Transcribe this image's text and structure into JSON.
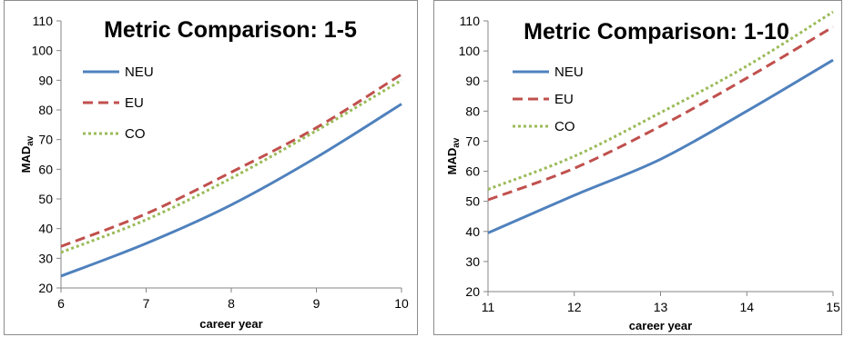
{
  "chart_data": [
    {
      "type": "line",
      "title": "Metric Comparison: 1-5",
      "xlabel": "career year",
      "ylabel": "MAD",
      "ylabel_sub": "av",
      "xlim": [
        6,
        10
      ],
      "ylim": [
        20,
        110
      ],
      "xticks": [
        "6",
        "7",
        "8",
        "9",
        "10"
      ],
      "yticks": [
        "20",
        "30",
        "40",
        "50",
        "60",
        "70",
        "80",
        "90",
        "100",
        "110"
      ],
      "grid": false,
      "legend_position": "upper-left",
      "x": [
        6,
        7,
        8,
        9,
        10
      ],
      "series": [
        {
          "name": "NEU",
          "color": "#4f81bd",
          "style": "solid",
          "values": [
            24,
            35,
            48,
            64,
            82
          ]
        },
        {
          "name": "EU",
          "color": "#c0504d",
          "style": "dashed",
          "values": [
            34,
            45,
            59,
            74,
            92
          ]
        },
        {
          "name": "CO",
          "color": "#9bbb59",
          "style": "dotted",
          "values": [
            32,
            43,
            57,
            73,
            90
          ]
        }
      ]
    },
    {
      "type": "line",
      "title": "Metric Comparison: 1-10",
      "xlabel": "career year",
      "ylabel": "MAD",
      "ylabel_sub": "av",
      "xlim": [
        11,
        15
      ],
      "ylim": [
        20,
        110
      ],
      "xticks": [
        "11",
        "12",
        "13",
        "14",
        "15"
      ],
      "yticks": [
        "20",
        "30",
        "40",
        "50",
        "60",
        "70",
        "80",
        "90",
        "100",
        "110"
      ],
      "grid": false,
      "legend_position": "upper-left",
      "x": [
        11,
        12,
        13,
        14,
        15
      ],
      "series": [
        {
          "name": "NEU",
          "color": "#4f81bd",
          "style": "solid",
          "values": [
            39.5,
            52,
            64,
            80,
            97
          ]
        },
        {
          "name": "EU",
          "color": "#c0504d",
          "style": "dashed",
          "values": [
            50.5,
            61,
            75,
            91,
            108
          ]
        },
        {
          "name": "CO",
          "color": "#9bbb59",
          "style": "dotted",
          "values": [
            54,
            65,
            79.5,
            95,
            113
          ]
        }
      ]
    }
  ]
}
